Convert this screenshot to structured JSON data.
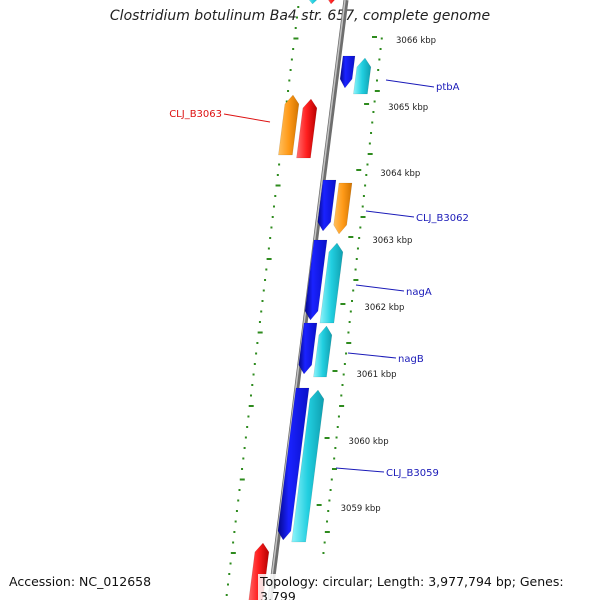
{
  "title": "Clostridium botulinum Ba4 str. 657, complete genome",
  "accession": "Accession: NC_012658",
  "topology": "Topology: circular; Length: 3,977,794 bp; Genes: 3,799",
  "colors": {
    "backbone": "#8a8a8a",
    "gc_dots": "#2e8b1e",
    "forward_blue": "#0a10e0",
    "cyan": "#18c8d8",
    "orange": "#ff9a18",
    "red": "#ff1f1f",
    "label_blue": "#1a1ab8",
    "label_red": "#dd1111"
  },
  "ticks": [
    {
      "label": "3066 kbp"
    },
    {
      "label": "3065 kbp"
    },
    {
      "label": "3064 kbp"
    },
    {
      "label": "3063 kbp"
    },
    {
      "label": "3062 kbp"
    },
    {
      "label": "3061 kbp"
    },
    {
      "label": "3060 kbp"
    },
    {
      "label": "3059 kbp"
    }
  ],
  "gene_labels": [
    {
      "name": "ptbA",
      "color": "label_blue"
    },
    {
      "name": "CLJ_B3063",
      "color": "label_red"
    },
    {
      "name": "CLJ_B3062",
      "color": "label_blue"
    },
    {
      "name": "nagA",
      "color": "label_blue"
    },
    {
      "name": "nagB",
      "color": "label_blue"
    },
    {
      "name": "CLJ_B3059",
      "color": "label_blue"
    }
  ]
}
